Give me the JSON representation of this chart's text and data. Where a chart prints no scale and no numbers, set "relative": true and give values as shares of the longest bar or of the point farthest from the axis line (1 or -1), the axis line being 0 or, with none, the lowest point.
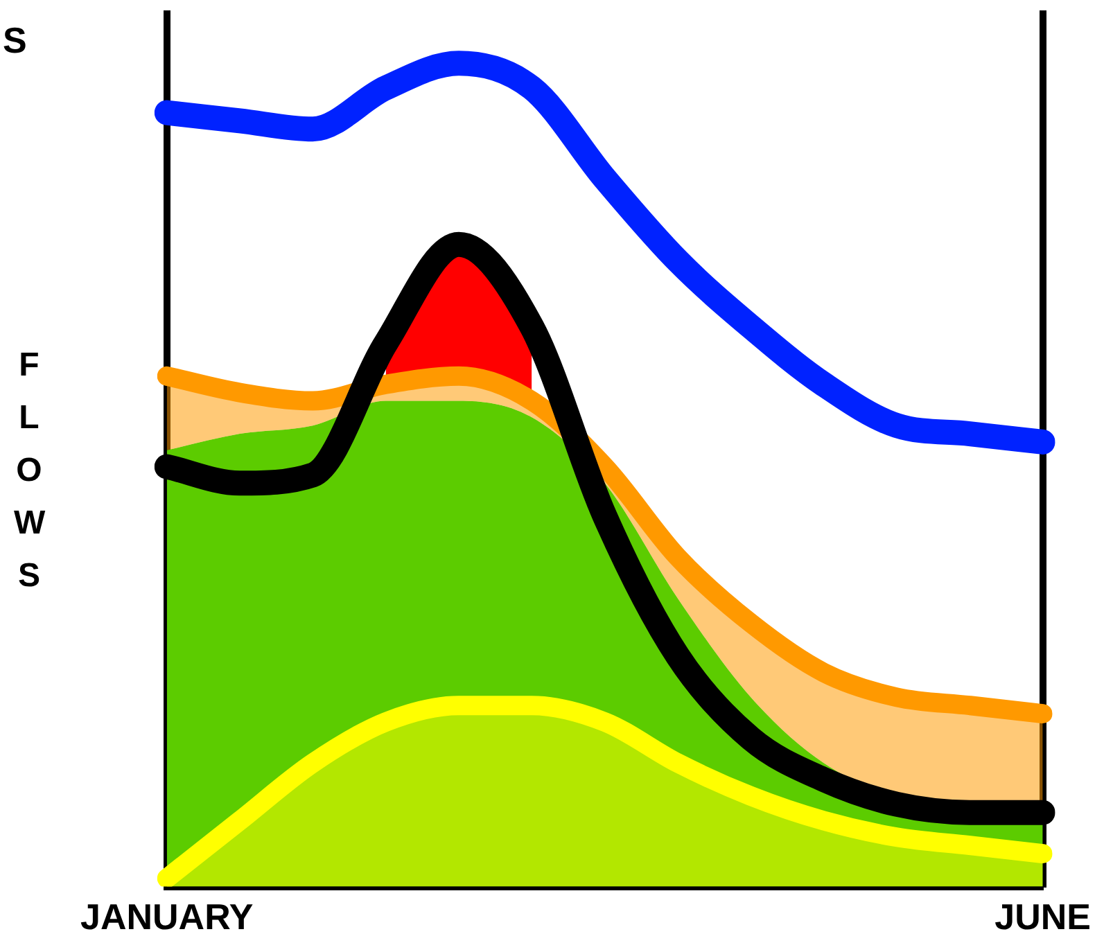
{
  "chart_data": {
    "type": "line",
    "relative": true,
    "ylabel": "FLOWS",
    "annotations": [
      "S"
    ],
    "grid": false,
    "legend": false,
    "categories": [
      "JANUARY",
      null,
      null,
      null,
      null,
      null,
      null,
      null,
      null,
      null,
      null,
      null,
      "JUNE"
    ],
    "series": [
      {
        "type": "area",
        "color": "#5ccc00",
        "values": [
          0.53,
          0.55,
          0.56,
          0.59,
          0.59,
          0.57,
          0.49,
          0.35,
          0.23,
          0.15,
          0.11,
          0.1,
          0.1
        ]
      },
      {
        "type": "area",
        "color": "#ff9900",
        "values": [
          0.62,
          0.6,
          0.59,
          0.61,
          0.62,
          0.59,
          0.51,
          0.4,
          0.32,
          0.26,
          0.23,
          0.22,
          0.21
        ]
      },
      {
        "type": "area",
        "color": "#ffff00",
        "values": [
          0.01,
          0.08,
          0.15,
          0.2,
          0.22,
          0.22,
          0.2,
          0.15,
          0.11,
          0.08,
          0.06,
          0.05,
          0.04
        ]
      },
      {
        "type": "area",
        "color": "#ff0000",
        "values": [
          null,
          null,
          null,
          0.66,
          0.78,
          0.68,
          null,
          null,
          null,
          null,
          null,
          null,
          null
        ]
      },
      {
        "type": "line",
        "color": "#000000",
        "values": [
          0.51,
          0.49,
          0.5,
          0.66,
          0.78,
          0.68,
          0.45,
          0.28,
          0.18,
          0.13,
          0.1,
          0.09,
          0.09
        ]
      },
      {
        "type": "line",
        "color": "#0022ff",
        "values": [
          0.94,
          0.93,
          0.92,
          0.97,
          1,
          0.97,
          0.86,
          0.76,
          0.68,
          0.61,
          0.56,
          0.55,
          0.54
        ]
      }
    ]
  }
}
